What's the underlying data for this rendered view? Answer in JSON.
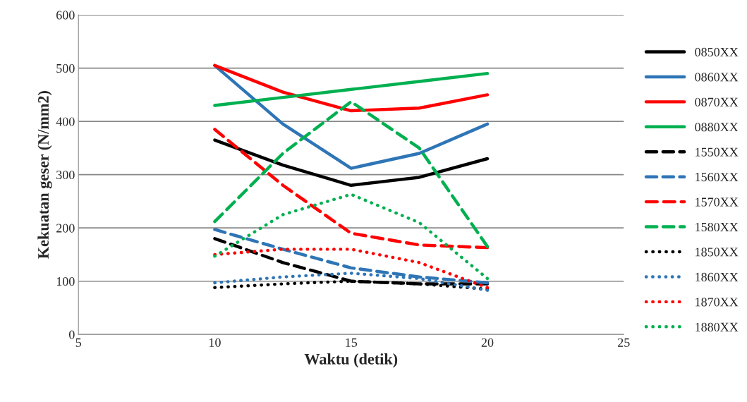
{
  "chart_data": {
    "type": "line",
    "xlabel": "Waktu (detik)",
    "ylabel": "Kekuatan geser (N/mm2)",
    "x": [
      10,
      12.5,
      15,
      17.5,
      20
    ],
    "xlim": [
      5,
      25
    ],
    "xticks": [
      5,
      10,
      15,
      20,
      25
    ],
    "ylim": [
      0,
      600
    ],
    "yticks": [
      0,
      100,
      200,
      300,
      400,
      500,
      600
    ],
    "grid": "y",
    "legend": "right",
    "marker": "none",
    "series": [
      {
        "name": "0850XX",
        "color": "#000000",
        "line_style": "solid",
        "values": [
          365,
          318,
          280,
          295,
          330
        ]
      },
      {
        "name": "0860XX",
        "color": "#2e75b6",
        "line_style": "solid",
        "values": [
          505,
          395,
          312,
          340,
          395
        ]
      },
      {
        "name": "0870XX",
        "color": "#ff0000",
        "line_style": "solid",
        "values": [
          505,
          455,
          420,
          425,
          450
        ]
      },
      {
        "name": "0880XX",
        "color": "#00b050",
        "line_style": "solid",
        "values": [
          430,
          445,
          460,
          475,
          490
        ]
      },
      {
        "name": "1550XX",
        "color": "#000000",
        "line_style": "dashed",
        "values": [
          180,
          135,
          100,
          95,
          95
        ]
      },
      {
        "name": "1560XX",
        "color": "#2e75b6",
        "line_style": "dashed",
        "values": [
          197,
          160,
          125,
          108,
          97
        ]
      },
      {
        "name": "1570XX",
        "color": "#ff0000",
        "line_style": "dashed",
        "values": [
          385,
          280,
          190,
          168,
          163
        ]
      },
      {
        "name": "1580XX",
        "color": "#00b050",
        "line_style": "dashed",
        "values": [
          212,
          340,
          437,
          350,
          165
        ]
      },
      {
        "name": "1850XX",
        "color": "#000000",
        "line_style": "dotted",
        "values": [
          88,
          95,
          100,
          95,
          85
        ]
      },
      {
        "name": "1860XX",
        "color": "#2e75b6",
        "line_style": "dotted",
        "values": [
          97,
          108,
          115,
          105,
          83
        ]
      },
      {
        "name": "1870XX",
        "color": "#ff0000",
        "line_style": "dotted",
        "values": [
          150,
          160,
          160,
          135,
          88
        ]
      },
      {
        "name": "1880XX",
        "color": "#00b050",
        "line_style": "dotted",
        "values": [
          147,
          225,
          263,
          210,
          105
        ]
      }
    ]
  }
}
